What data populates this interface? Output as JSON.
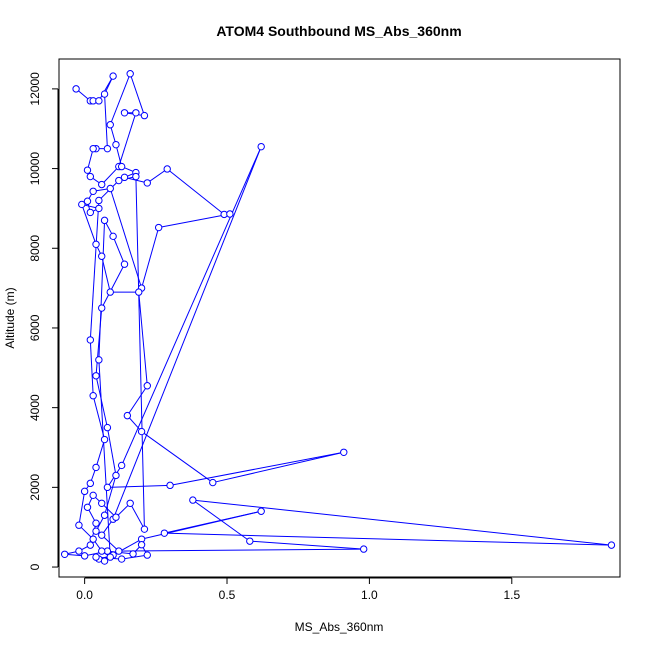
{
  "chart_data": {
    "type": "line",
    "title": "ATOM4 Southbound MS_Abs_360nm",
    "xlabel": "MS_Abs_360nm",
    "ylabel": "Altitude (m)",
    "xlim": [
      -0.09,
      1.88
    ],
    "ylim": [
      -250,
      12750
    ],
    "x_ticks": [
      0.0,
      0.5,
      1.0,
      1.5
    ],
    "x_tick_labels": [
      "0.0",
      "0.5",
      "1.0",
      "1.5"
    ],
    "y_ticks": [
      0,
      2000,
      4000,
      6000,
      8000,
      10000,
      12000
    ],
    "y_tick_labels": [
      "0",
      "2000",
      "4000",
      "6000",
      "8000",
      "10000",
      "12000"
    ],
    "grid": false,
    "marker": "open-circle",
    "color": "#0000ff",
    "series": [
      {
        "points": [
          [
            -0.03,
            12000
          ],
          [
            0.02,
            11700
          ],
          [
            0.03,
            11700
          ],
          [
            0.05,
            11700
          ],
          [
            0.1,
            12320
          ],
          [
            0.07,
            11870
          ],
          [
            0.08,
            10500
          ],
          [
            0.04,
            10500
          ],
          [
            0.03,
            10500
          ],
          [
            0.01,
            9960
          ],
          [
            0.02,
            9800
          ],
          [
            0.06,
            9600
          ],
          [
            0.12,
            10050
          ],
          [
            0.18,
            11400
          ],
          [
            0.14,
            11400
          ],
          [
            0.21,
            11330
          ],
          [
            0.16,
            12380
          ],
          [
            0.09,
            11100
          ],
          [
            0.11,
            10600
          ],
          [
            0.13,
            10050
          ],
          [
            0.18,
            9900
          ],
          [
            0.14,
            9780
          ],
          [
            0.22,
            9640
          ],
          [
            0.29,
            9990
          ],
          [
            0.49,
            8850
          ],
          [
            0.51,
            8860
          ],
          [
            0.26,
            8520
          ],
          [
            0.2,
            7000
          ],
          [
            0.09,
            9500
          ],
          [
            0.03,
            9430
          ],
          [
            0.01,
            9180
          ],
          [
            0.02,
            8900
          ],
          [
            0.05,
            9000
          ],
          [
            -0.01,
            9100
          ],
          [
            0.04,
            8100
          ],
          [
            0.06,
            7800
          ],
          [
            0.09,
            6900
          ],
          [
            0.19,
            6900
          ],
          [
            0.22,
            4550
          ],
          [
            0.15,
            3800
          ],
          [
            0.2,
            3400
          ],
          [
            0.45,
            2120
          ],
          [
            0.91,
            2880
          ],
          [
            0.3,
            2050
          ],
          [
            0.08,
            2000
          ],
          [
            0.13,
            2550
          ],
          [
            0.62,
            10550
          ],
          [
            0.1,
            1200
          ],
          [
            0.06,
            800
          ],
          [
            0.12,
            400
          ],
          [
            0.98,
            450
          ],
          [
            0.58,
            650
          ],
          [
            0.38,
            1680
          ],
          [
            1.85,
            550
          ],
          [
            0.28,
            850
          ],
          [
            0.62,
            1400
          ],
          [
            0.2,
            700
          ],
          [
            0.1,
            300
          ],
          [
            0.05,
            200
          ],
          [
            0.07,
            150
          ],
          [
            0.04,
            250
          ],
          [
            0.13,
            200
          ],
          [
            0.22,
            300
          ],
          [
            0.2,
            560
          ],
          [
            0.17,
            330
          ],
          [
            0.08,
            400
          ],
          [
            0.0,
            280
          ],
          [
            -0.07,
            320
          ],
          [
            -0.02,
            400
          ],
          [
            0.02,
            550
          ],
          [
            0.04,
            1100
          ],
          [
            0.01,
            1500
          ],
          [
            0.03,
            1800
          ],
          [
            0.06,
            1600
          ],
          [
            0.11,
            1250
          ],
          [
            0.16,
            1600
          ],
          [
            0.21,
            950
          ],
          [
            0.18,
            9800
          ],
          [
            0.12,
            9700
          ],
          [
            0.05,
            9200
          ],
          [
            0.02,
            5700
          ],
          [
            0.03,
            4300
          ],
          [
            0.07,
            3200
          ],
          [
            0.04,
            2500
          ],
          [
            0.02,
            2100
          ],
          [
            0.0,
            1900
          ],
          [
            -0.02,
            1050
          ],
          [
            0.03,
            700
          ],
          [
            0.06,
            400
          ],
          [
            0.09,
            250
          ],
          [
            0.05,
            5200
          ],
          [
            0.07,
            8700
          ],
          [
            0.1,
            8300
          ],
          [
            0.14,
            7600
          ],
          [
            0.06,
            6500
          ],
          [
            0.04,
            4800
          ],
          [
            0.08,
            3500
          ],
          [
            0.11,
            2300
          ],
          [
            0.07,
            1300
          ],
          [
            0.04,
            900
          ]
        ]
      }
    ]
  }
}
